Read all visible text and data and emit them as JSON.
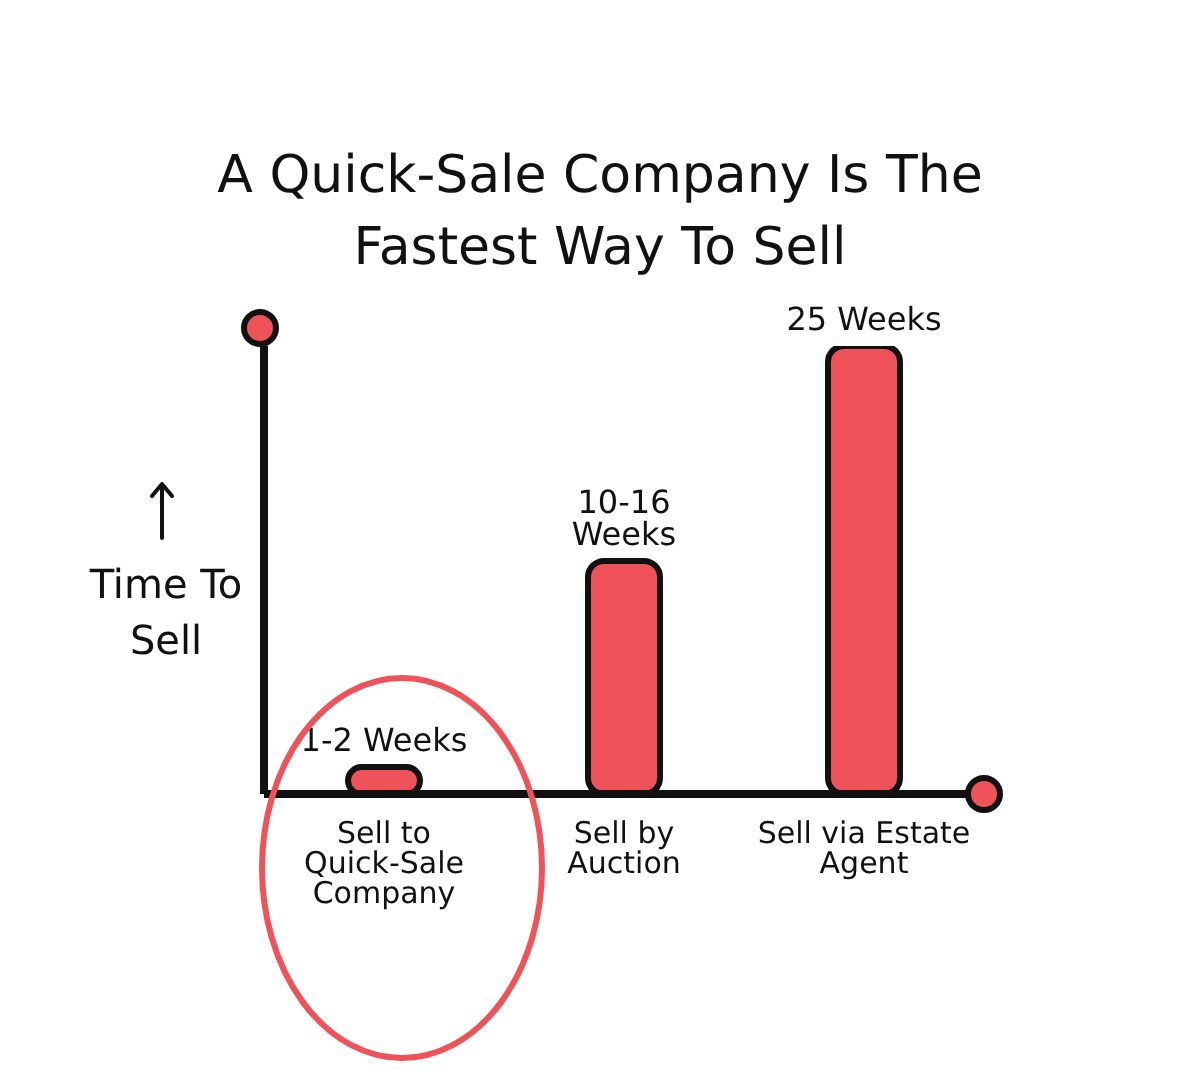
{
  "chart_data": {
    "type": "bar",
    "title": "A Quick-Sale Company Is The Fastest Way To Sell",
    "ylabel": "Time To Sell",
    "categories": [
      "Sell to Quick-Sale Company",
      "Sell by Auction",
      "Sell via Estate Agent"
    ],
    "values": [
      1.5,
      13,
      25
    ],
    "color": "#f0525a",
    "value_labels": [
      "1-2 Weeks",
      "10-16 Weeks",
      "25 Weeks"
    ],
    "grid": false,
    "legend": false
  }
}
